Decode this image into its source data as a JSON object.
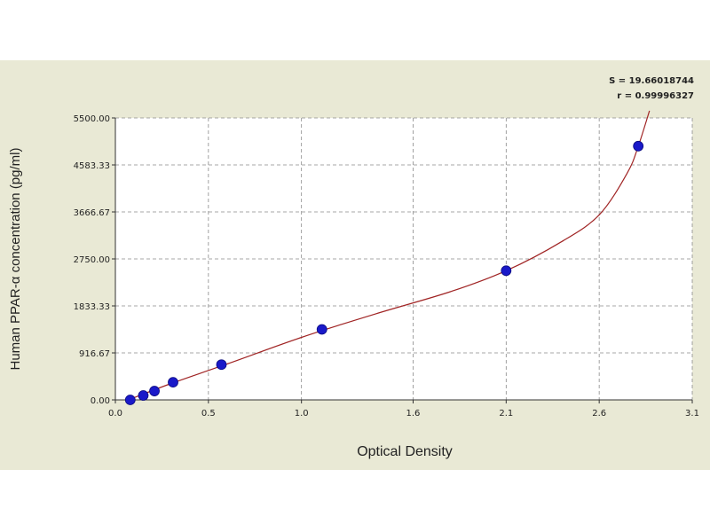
{
  "chart_data": {
    "type": "scatter",
    "xlabel": "Optical Density",
    "ylabel": "Human PPAR-α concentration (pg/ml)",
    "xlim": [
      0.0,
      3.1
    ],
    "ylim": [
      0,
      5500
    ],
    "x_ticks": [
      0.0,
      0.5,
      1.0,
      1.6,
      2.1,
      2.6,
      3.1
    ],
    "x_tick_labels": [
      "0.0",
      "0.5",
      "1.0",
      "1.6",
      "2.1",
      "2.6",
      "3.1"
    ],
    "y_ticks": [
      0,
      916.67,
      1833.33,
      2750.0,
      3666.67,
      4583.33,
      5500.0
    ],
    "y_tick_labels": [
      "0.00",
      "916.67",
      "1833.33",
      "2750.00",
      "3666.67",
      "4583.33",
      "5500.00"
    ],
    "grid": true,
    "points": [
      {
        "x": 0.08,
        "y": 0
      },
      {
        "x": 0.15,
        "y": 86
      },
      {
        "x": 0.21,
        "y": 172
      },
      {
        "x": 0.31,
        "y": 344
      },
      {
        "x": 0.57,
        "y": 688
      },
      {
        "x": 1.11,
        "y": 1375
      },
      {
        "x": 2.1,
        "y": 2520
      },
      {
        "x": 2.81,
        "y": 4950
      }
    ],
    "fit_curve": [
      {
        "x": 0.07,
        "y": 0
      },
      {
        "x": 0.3,
        "y": 320
      },
      {
        "x": 0.6,
        "y": 700
      },
      {
        "x": 1.0,
        "y": 1220
      },
      {
        "x": 1.4,
        "y": 1680
      },
      {
        "x": 1.8,
        "y": 2110
      },
      {
        "x": 2.1,
        "y": 2520
      },
      {
        "x": 2.4,
        "y": 3090
      },
      {
        "x": 2.6,
        "y": 3610
      },
      {
        "x": 2.75,
        "y": 4420
      },
      {
        "x": 2.81,
        "y": 4950
      },
      {
        "x": 2.87,
        "y": 5640
      }
    ],
    "stats": {
      "s_label": "S = 19.66018744",
      "r_label": "r = 0.99996327"
    },
    "colors": {
      "point": "#1a19c9",
      "curve": "#a02424",
      "grid": "#8a8a8a",
      "background": "#e9e9d5",
      "plot_bg": "#ffffff"
    }
  }
}
